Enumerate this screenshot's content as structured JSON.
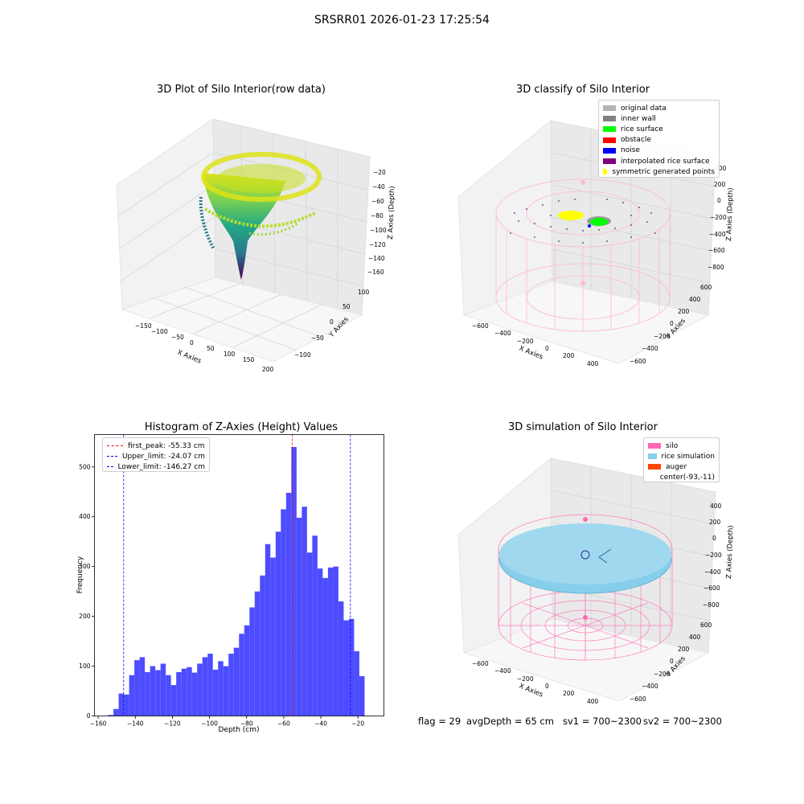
{
  "suptitle": "SRSRR01 2026-01-23 17:25:54",
  "panels": {
    "raw": {
      "title": "3D Plot of Silo Interior(row data)",
      "xlabel": "X Axies",
      "ylabel": "Y Axies",
      "zlabel": "Z Axies (Depth)",
      "xticks": [
        "−150",
        "−100",
        "−50",
        "0",
        "50",
        "100",
        "150",
        "200"
      ],
      "yticks": [
        "100",
        "50",
        "0",
        "−50",
        "−100"
      ],
      "zticks": [
        "−20",
        "−40",
        "−60",
        "−80",
        "−100",
        "−120",
        "−140",
        "−160"
      ]
    },
    "classify": {
      "title": "3D classify of Silo Interior",
      "xlabel": "X Axies",
      "ylabel": "Y Axies",
      "zlabel": "Z Axies (Depth)",
      "xticks": [
        "−600",
        "−400",
        "−200",
        "0",
        "200",
        "400"
      ],
      "yticks": [
        "600",
        "400",
        "200",
        "0",
        "−200",
        "−400",
        "−600"
      ],
      "zticks": [
        "400",
        "200",
        "0",
        "−200",
        "−400",
        "−600",
        "−800"
      ],
      "legend": [
        {
          "label": "original data",
          "color": "#b3b3b3"
        },
        {
          "label": "inner wall",
          "color": "#808080"
        },
        {
          "label": "rice surface",
          "color": "#00ff00"
        },
        {
          "label": "obstacle",
          "color": "#ff0000"
        },
        {
          "label": "noise",
          "color": "#0000ff"
        },
        {
          "label": "interpolated rice surface",
          "color": "#800080"
        },
        {
          "label": "symmetric generated points",
          "color": "#ffff00"
        }
      ]
    },
    "simulation": {
      "title": "3D simulation of Silo Interior",
      "xlabel": "X Axies",
      "ylabel": "Y Axies",
      "zlabel": "Z Axies (Depth)",
      "xticks": [
        "−600",
        "−400",
        "−200",
        "0",
        "200",
        "400"
      ],
      "yticks": [
        "600",
        "400",
        "200",
        "0",
        "−200",
        "−400",
        "−600"
      ],
      "zticks": [
        "400",
        "200",
        "0",
        "−200",
        "−400",
        "−600",
        "−800"
      ],
      "legend": [
        {
          "label": "silo",
          "color": "#ff69b4"
        },
        {
          "label": "rice simulation",
          "color": "#87ceeb"
        },
        {
          "label": "auger",
          "color": "#ff4500"
        },
        {
          "label": "center(-93,-11)",
          "color": "#ffffff"
        }
      ]
    }
  },
  "chart_data": {
    "type": "bar",
    "title": "Histogram of Z-Axies (Height) Values",
    "xlabel": "Depth (cm)",
    "ylabel": "Frequency",
    "xlim": [
      -162,
      -6
    ],
    "ylim": [
      0,
      565
    ],
    "xticks": [
      -160,
      -140,
      -120,
      -100,
      -80,
      -60,
      -40,
      -20
    ],
    "xtick_labels": [
      "−160",
      "−140",
      "−120",
      "−100",
      "−80",
      "−60",
      "−40",
      "−20"
    ],
    "yticks": [
      0,
      100,
      200,
      300,
      400,
      500
    ],
    "bin_start": -154.6,
    "bin_width": 2.82,
    "bar_color": "#4d4dff",
    "values": [
      2,
      14,
      45,
      43,
      82,
      112,
      118,
      88,
      100,
      92,
      105,
      82,
      62,
      88,
      95,
      98,
      87,
      105,
      118,
      125,
      93,
      110,
      100,
      125,
      137,
      165,
      182,
      218,
      250,
      282,
      345,
      318,
      370,
      415,
      448,
      540,
      398,
      420,
      328,
      362,
      296,
      277,
      298,
      300,
      230,
      192,
      195,
      130,
      80
    ],
    "vlines": [
      {
        "x": -55.33,
        "color": "#ff0000",
        "label": "first_peak: -55.33 cm"
      },
      {
        "x": -24.07,
        "color": "#0000ff",
        "label": "Upper_limit: -24.07 cm"
      },
      {
        "x": -146.27,
        "color": "#0000ff",
        "label": "Lower_limit: -146.27 cm"
      }
    ],
    "legend_position": "upper left"
  },
  "footer": {
    "flag": "flag = 29",
    "avg": "avgDepth = 65 cm",
    "sv1": "sv1 = 700~2300",
    "sv2": "sv2 = 700~2300"
  }
}
